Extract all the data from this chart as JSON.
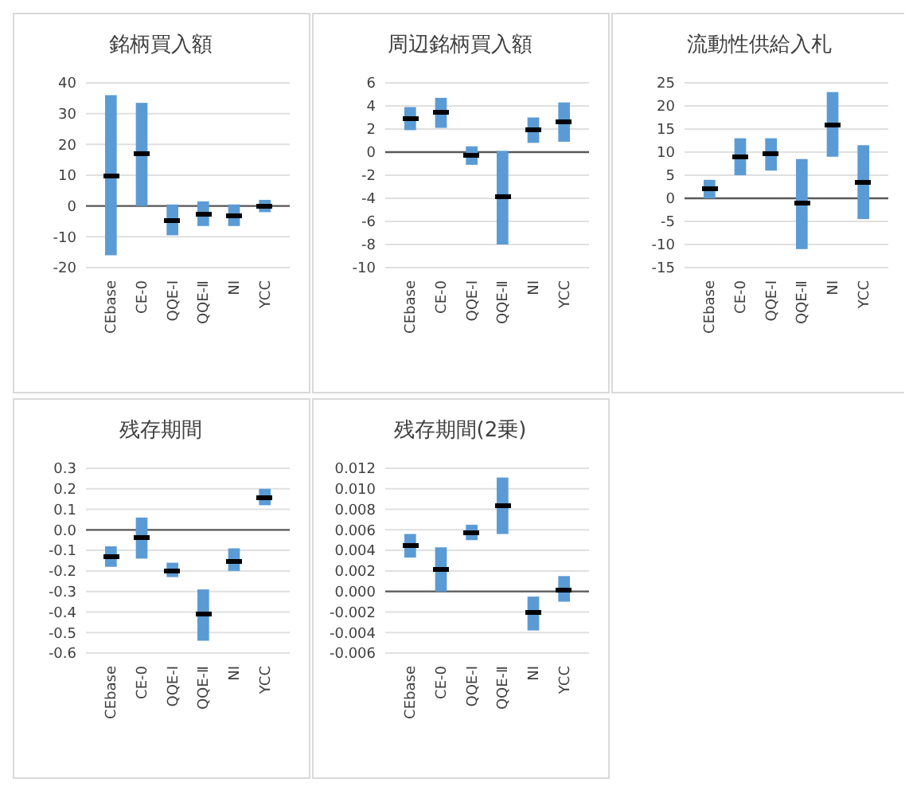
{
  "chart_data": [
    {
      "type": "bar",
      "title": "銘柄買入額",
      "categories": [
        "CEbase",
        "CE-0",
        "QQE-Ⅰ",
        "QQE-Ⅱ",
        "NI",
        "YCC"
      ],
      "ylim": [
        -20,
        40
      ],
      "yticks": [
        -20,
        -10,
        0,
        10,
        20,
        30,
        40
      ],
      "grid": "y",
      "series": [
        {
          "type": "bar",
          "color": "#5b9bd5",
          "base": [
            -16,
            0,
            -9.5,
            -6.5,
            -6.5,
            -2
          ],
          "values": [
            52,
            33.5,
            10,
            8,
            7,
            4
          ]
        },
        {
          "type": "scatter",
          "color": "#000000",
          "x": [
            "CEbase",
            "CE-0",
            "QQE-Ⅰ",
            "QQE-Ⅱ",
            "NI",
            "YCC"
          ],
          "values": [
            10,
            17,
            -4.5,
            -2.5,
            -3,
            0
          ]
        }
      ]
    },
    {
      "type": "bar",
      "title": "周辺銘柄買入額",
      "categories": [
        "CEbase",
        "CE-0",
        "QQE-Ⅰ",
        "QQE-Ⅱ",
        "NI",
        "YCC"
      ],
      "ylim": [
        -10,
        6
      ],
      "yticks": [
        -10,
        -8,
        -6,
        -4,
        -2,
        0,
        2,
        4,
        6
      ],
      "grid": "y",
      "series": [
        {
          "type": "bar",
          "color": "#5b9bd5",
          "base": [
            1.9,
            2.1,
            -1.1,
            -8,
            0.8,
            0.9
          ],
          "values": [
            2,
            2.6,
            1.6,
            8.1,
            2.2,
            3.4
          ]
        },
        {
          "type": "scatter",
          "color": "#000000",
          "x": [
            "CEbase",
            "CE-0",
            "QQE-Ⅰ",
            "QQE-Ⅱ",
            "NI",
            "YCC"
          ],
          "values": [
            2.9,
            3.4,
            -0.3,
            -3.9,
            1.9,
            2.6
          ]
        }
      ]
    },
    {
      "type": "bar",
      "title": "流動性供給入札",
      "categories": [
        "CEbase",
        "CE-0",
        "QQE-Ⅰ",
        "QQE-Ⅱ",
        "NI",
        "YCC"
      ],
      "ylim": [
        -15,
        25
      ],
      "yticks": [
        -15,
        -10,
        -5,
        0,
        5,
        10,
        15,
        20,
        25
      ],
      "grid": "y",
      "series": [
        {
          "type": "bar",
          "color": "#5b9bd5",
          "base": [
            0,
            5,
            6,
            -11,
            9,
            -4.5
          ],
          "values": [
            4,
            8,
            7,
            19.5,
            14,
            16
          ]
        },
        {
          "type": "scatter",
          "color": "#000000",
          "x": [
            "CEbase",
            "CE-0",
            "QQE-Ⅰ",
            "QQE-Ⅱ",
            "NI",
            "YCC"
          ],
          "values": [
            2,
            9,
            9.5,
            -1,
            16,
            3.5
          ]
        }
      ]
    },
    {
      "type": "bar",
      "title": "残存期間",
      "categories": [
        "CEbase",
        "CE-0",
        "QQE-Ⅰ",
        "QQE-Ⅱ",
        "NI",
        "YCC"
      ],
      "ylim": [
        -0.6,
        0.3
      ],
      "yticks": [
        {
          "value": -0.6,
          "label": "-0.6"
        },
        {
          "value": -0.5,
          "label": "-0.5"
        },
        {
          "value": -0.4,
          "label": "-0.4"
        },
        {
          "value": -0.3,
          "label": "-0.3"
        },
        {
          "value": -0.2,
          "label": "-0.2"
        },
        {
          "value": -0.1,
          "label": "-0.1"
        },
        {
          "value": 0,
          "label": "0.0"
        },
        {
          "value": 0.1,
          "label": "0.1"
        },
        {
          "value": 0.2,
          "label": "0.2"
        },
        {
          "value": 0.3,
          "label": "0.3"
        }
      ],
      "grid": "y",
      "series": [
        {
          "type": "bar",
          "color": "#5b9bd5",
          "base": [
            -0.18,
            -0.14,
            -0.23,
            -0.54,
            -0.2,
            0.12
          ],
          "values": [
            0.1,
            0.2,
            0.07,
            0.25,
            0.11,
            0.08
          ]
        },
        {
          "type": "scatter",
          "color": "#000000",
          "x": [
            "CEbase",
            "CE-0",
            "QQE-Ⅰ",
            "QQE-Ⅱ",
            "NI",
            "YCC"
          ],
          "values": [
            -0.13,
            -0.04,
            -0.2,
            -0.41,
            -0.15,
            0.16
          ]
        }
      ]
    },
    {
      "type": "bar",
      "title": "残存期間(2乗)",
      "categories": [
        "CEbase",
        "CE-0",
        "QQE-Ⅰ",
        "QQE-Ⅱ",
        "NI",
        "YCC"
      ],
      "ylim": [
        -0.006,
        0.012
      ],
      "yticks": [
        {
          "value": -0.006,
          "label": "-0.006"
        },
        {
          "value": -0.004,
          "label": "-0.004"
        },
        {
          "value": -0.002,
          "label": "-0.002"
        },
        {
          "value": 0,
          "label": "0.000"
        },
        {
          "value": 0.002,
          "label": "0.002"
        },
        {
          "value": 0.004,
          "label": "0.004"
        },
        {
          "value": 0.006,
          "label": "0.006"
        },
        {
          "value": 0.008,
          "label": "0.008"
        },
        {
          "value": 0.01,
          "label": "0.010"
        },
        {
          "value": 0.012,
          "label": "0.012"
        }
      ],
      "grid": "y",
      "series": [
        {
          "type": "bar",
          "color": "#5b9bd5",
          "base": [
            0.0033,
            0,
            0.005,
            0.0056,
            -0.0038,
            -0.001
          ],
          "values": [
            0.0023,
            0.0043,
            0.0015,
            0.0055,
            0.0033,
            0.0025
          ]
        },
        {
          "type": "scatter",
          "color": "#000000",
          "x": [
            "CEbase",
            "CE-0",
            "QQE-Ⅰ",
            "QQE-Ⅱ",
            "NI",
            "YCC"
          ],
          "values": [
            0.0044,
            0.0021,
            0.0057,
            0.0083,
            -0.0021,
            0.0002
          ]
        }
      ]
    }
  ]
}
